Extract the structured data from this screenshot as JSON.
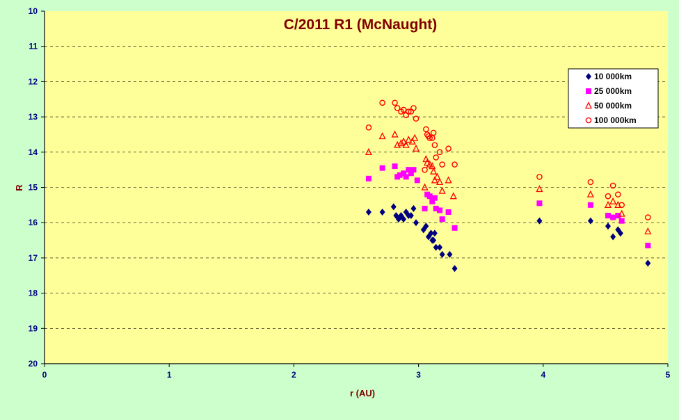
{
  "colors": {
    "background": "#ccffcc",
    "plot_area": "#ffff99",
    "title": "#800000",
    "axis_text": "#000080",
    "axis_label": "#800000",
    "gridline": "#000000"
  },
  "chart_data": {
    "type": "scatter",
    "title": "C/2011 R1 (McNaught)",
    "xlabel": "r (AU)",
    "ylabel": "R",
    "xlim": [
      0,
      5
    ],
    "ylim": [
      20,
      10
    ],
    "y_reversed": true,
    "x_ticks": [
      "0",
      "1",
      "2",
      "3",
      "4",
      "5"
    ],
    "y_ticks": [
      "10",
      "11",
      "12",
      "13",
      "14",
      "15",
      "16",
      "17",
      "18",
      "19",
      "20"
    ],
    "grid": "horizontal dashed",
    "legend_position": "top-right",
    "series": [
      {
        "name": "10 000km",
        "marker": "diamond",
        "color": "#000080",
        "points": [
          [
            2.6,
            15.7
          ],
          [
            2.71,
            15.7
          ],
          [
            2.8,
            15.55
          ],
          [
            2.82,
            15.8
          ],
          [
            2.84,
            15.9
          ],
          [
            2.86,
            15.8
          ],
          [
            2.88,
            15.9
          ],
          [
            2.9,
            15.7
          ],
          [
            2.92,
            15.8
          ],
          [
            2.94,
            15.8
          ],
          [
            2.96,
            15.6
          ],
          [
            2.98,
            16.0
          ],
          [
            3.04,
            16.2
          ],
          [
            3.06,
            16.1
          ],
          [
            3.08,
            16.4
          ],
          [
            3.1,
            16.3
          ],
          [
            3.11,
            16.5
          ],
          [
            3.12,
            16.5
          ],
          [
            3.13,
            16.3
          ],
          [
            3.14,
            16.7
          ],
          [
            3.17,
            16.7
          ],
          [
            3.19,
            16.9
          ],
          [
            3.25,
            16.9
          ],
          [
            3.29,
            17.3
          ],
          [
            3.97,
            15.95
          ],
          [
            4.38,
            15.95
          ],
          [
            4.52,
            16.1
          ],
          [
            4.56,
            16.4
          ],
          [
            4.6,
            16.2
          ],
          [
            4.62,
            16.3
          ],
          [
            4.84,
            17.15
          ]
        ]
      },
      {
        "name": "25 000km",
        "marker": "square",
        "color": "#ff00ff",
        "points": [
          [
            2.6,
            14.75
          ],
          [
            2.71,
            14.45
          ],
          [
            2.81,
            14.4
          ],
          [
            2.83,
            14.7
          ],
          [
            2.85,
            14.65
          ],
          [
            2.88,
            14.6
          ],
          [
            2.9,
            14.7
          ],
          [
            2.92,
            14.5
          ],
          [
            2.94,
            14.6
          ],
          [
            2.96,
            14.5
          ],
          [
            2.99,
            14.8
          ],
          [
            3.05,
            15.6
          ],
          [
            3.07,
            15.2
          ],
          [
            3.09,
            15.25
          ],
          [
            3.11,
            15.4
          ],
          [
            3.13,
            15.3
          ],
          [
            3.14,
            15.6
          ],
          [
            3.17,
            15.65
          ],
          [
            3.19,
            15.9
          ],
          [
            3.24,
            15.7
          ],
          [
            3.29,
            16.15
          ],
          [
            3.97,
            15.45
          ],
          [
            4.38,
            15.5
          ],
          [
            4.52,
            15.8
          ],
          [
            4.56,
            15.85
          ],
          [
            4.6,
            15.8
          ],
          [
            4.63,
            15.95
          ],
          [
            4.84,
            16.65
          ]
        ]
      },
      {
        "name": "50 000km",
        "marker": "triangle",
        "color": "#ff0000",
        "points": [
          [
            2.6,
            14.0
          ],
          [
            2.71,
            13.55
          ],
          [
            2.81,
            13.5
          ],
          [
            2.83,
            13.8
          ],
          [
            2.86,
            13.75
          ],
          [
            2.88,
            13.7
          ],
          [
            2.9,
            13.8
          ],
          [
            2.92,
            13.65
          ],
          [
            2.95,
            13.7
          ],
          [
            2.97,
            13.6
          ],
          [
            2.98,
            13.9
          ],
          [
            3.05,
            15.0
          ],
          [
            3.06,
            14.2
          ],
          [
            3.07,
            14.3
          ],
          [
            3.09,
            14.35
          ],
          [
            3.11,
            14.4
          ],
          [
            3.12,
            14.55
          ],
          [
            3.13,
            14.8
          ],
          [
            3.15,
            14.7
          ],
          [
            3.17,
            14.85
          ],
          [
            3.19,
            15.1
          ],
          [
            3.24,
            14.8
          ],
          [
            3.28,
            15.25
          ],
          [
            3.97,
            15.05
          ],
          [
            4.38,
            15.2
          ],
          [
            4.52,
            15.5
          ],
          [
            4.56,
            15.4
          ],
          [
            4.6,
            15.5
          ],
          [
            4.63,
            15.75
          ],
          [
            4.84,
            16.25
          ]
        ]
      },
      {
        "name": "100 000km",
        "marker": "circle",
        "color": "#ff0000",
        "points": [
          [
            2.6,
            13.3
          ],
          [
            2.71,
            12.6
          ],
          [
            2.81,
            12.6
          ],
          [
            2.83,
            12.75
          ],
          [
            2.86,
            12.85
          ],
          [
            2.88,
            12.8
          ],
          [
            2.9,
            12.95
          ],
          [
            2.92,
            12.85
          ],
          [
            2.94,
            12.85
          ],
          [
            2.96,
            12.75
          ],
          [
            2.98,
            13.05
          ],
          [
            3.05,
            14.5
          ],
          [
            3.06,
            13.35
          ],
          [
            3.07,
            13.5
          ],
          [
            3.08,
            13.55
          ],
          [
            3.09,
            13.6
          ],
          [
            3.11,
            13.6
          ],
          [
            3.12,
            13.45
          ],
          [
            3.13,
            13.8
          ],
          [
            3.14,
            14.15
          ],
          [
            3.17,
            14.0
          ],
          [
            3.19,
            14.35
          ],
          [
            3.24,
            13.9
          ],
          [
            3.29,
            14.35
          ],
          [
            3.97,
            14.7
          ],
          [
            4.38,
            14.85
          ],
          [
            4.52,
            15.25
          ],
          [
            4.56,
            14.95
          ],
          [
            4.6,
            15.2
          ],
          [
            4.63,
            15.5
          ],
          [
            4.84,
            15.85
          ]
        ]
      }
    ]
  }
}
